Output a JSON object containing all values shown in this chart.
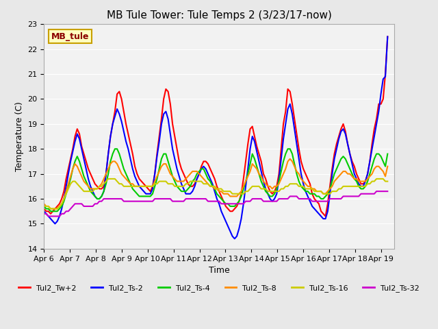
{
  "title": "MB Tule Tower: Tule Temps 2 (3/23/17-now)",
  "xlabel": "Time",
  "ylabel": "Temperature (C)",
  "ylim": [
    14.0,
    23.0
  ],
  "yticks": [
    14.0,
    15.0,
    16.0,
    17.0,
    18.0,
    19.0,
    20.0,
    21.0,
    22.0,
    23.0
  ],
  "xlim": [
    0,
    13.5
  ],
  "xtick_labels": [
    "Apr 6",
    "Apr 7",
    "Apr 8",
    "Apr 9",
    "Apr 10",
    "Apr 11",
    "Apr 12",
    "Apr 13",
    "Apr 14",
    "Apr 15",
    "Apr 16",
    "Apr 17",
    "Apr 18",
    "Apr 19"
  ],
  "xtick_positions": [
    0,
    1,
    2,
    3,
    4,
    5,
    6,
    7,
    8,
    9,
    10,
    11,
    12,
    13
  ],
  "annotation_text": "MB_tule",
  "annotation_color": "#8B0000",
  "annotation_bg": "#FFFFC0",
  "annotation_border": "#C8A000",
  "background_color": "#E8E8E8",
  "plot_bg": "#F2F2F2",
  "series": [
    {
      "name": "Tul2_Tw+2",
      "color": "#FF0000",
      "linewidth": 1.5,
      "y": [
        15.6,
        15.5,
        15.5,
        15.4,
        15.5,
        15.6,
        15.7,
        15.8,
        16.0,
        16.3,
        16.8,
        17.2,
        17.6,
        18.0,
        18.5,
        18.8,
        18.6,
        18.1,
        17.8,
        17.5,
        17.2,
        17.0,
        16.8,
        16.6,
        16.5,
        16.4,
        16.4,
        16.5,
        17.0,
        17.8,
        18.5,
        19.0,
        19.5,
        20.2,
        20.3,
        20.0,
        19.5,
        19.0,
        18.6,
        18.2,
        17.8,
        17.3,
        17.0,
        16.8,
        16.7,
        16.6,
        16.5,
        16.4,
        16.3,
        16.5,
        17.0,
        17.8,
        18.5,
        19.2,
        20.0,
        20.4,
        20.3,
        19.8,
        19.0,
        18.5,
        18.0,
        17.5,
        17.2,
        17.0,
        16.8,
        16.6,
        16.5,
        16.5,
        16.6,
        16.8,
        17.0,
        17.3,
        17.5,
        17.5,
        17.4,
        17.2,
        17.0,
        16.8,
        16.5,
        16.3,
        16.1,
        15.9,
        15.7,
        15.6,
        15.5,
        15.5,
        15.6,
        15.7,
        15.9,
        16.2,
        16.8,
        17.5,
        18.2,
        18.8,
        18.9,
        18.5,
        18.1,
        17.8,
        17.5,
        17.0,
        16.8,
        16.5,
        16.3,
        16.2,
        16.3,
        16.5,
        17.0,
        18.0,
        19.0,
        19.5,
        20.4,
        20.3,
        19.8,
        19.2,
        18.6,
        18.0,
        17.5,
        17.2,
        17.0,
        16.8,
        16.6,
        16.2,
        16.0,
        15.9,
        15.8,
        15.5,
        15.4,
        15.3,
        15.8,
        16.5,
        17.2,
        17.8,
        18.2,
        18.5,
        18.8,
        19.0,
        18.7,
        18.2,
        17.8,
        17.5,
        17.3,
        17.0,
        16.8,
        16.6,
        16.6,
        16.7,
        17.0,
        17.5,
        18.2,
        18.8,
        19.2,
        19.8,
        19.8,
        20.0,
        21.0,
        22.5
      ]
    },
    {
      "name": "Tul2_Ts-2",
      "color": "#0000FF",
      "linewidth": 1.5,
      "y": [
        15.5,
        15.4,
        15.3,
        15.2,
        15.1,
        15.0,
        15.1,
        15.3,
        15.6,
        16.0,
        16.5,
        17.0,
        17.5,
        17.9,
        18.3,
        18.6,
        18.4,
        18.0,
        17.6,
        17.2,
        16.8,
        16.5,
        16.3,
        16.1,
        16.0,
        16.0,
        16.1,
        16.3,
        17.0,
        17.8,
        18.5,
        19.0,
        19.3,
        19.6,
        19.4,
        19.1,
        18.7,
        18.3,
        18.0,
        17.6,
        17.2,
        16.9,
        16.7,
        16.5,
        16.4,
        16.3,
        16.2,
        16.2,
        16.2,
        16.4,
        17.0,
        17.7,
        18.3,
        19.0,
        19.4,
        19.5,
        19.2,
        18.6,
        18.0,
        17.6,
        17.2,
        16.9,
        16.6,
        16.4,
        16.2,
        16.2,
        16.2,
        16.3,
        16.5,
        16.8,
        17.0,
        17.2,
        17.3,
        17.2,
        17.0,
        16.8,
        16.6,
        16.3,
        16.0,
        15.8,
        15.5,
        15.3,
        15.1,
        14.9,
        14.7,
        14.5,
        14.4,
        14.5,
        14.8,
        15.2,
        15.8,
        16.5,
        17.2,
        18.0,
        18.5,
        18.3,
        17.9,
        17.5,
        17.1,
        16.7,
        16.4,
        16.2,
        16.0,
        15.9,
        16.0,
        16.2,
        16.8,
        17.6,
        18.4,
        19.0,
        19.6,
        19.8,
        19.4,
        18.8,
        18.2,
        17.6,
        17.0,
        16.6,
        16.3,
        16.1,
        15.9,
        15.7,
        15.6,
        15.5,
        15.4,
        15.3,
        15.2,
        15.2,
        15.5,
        16.2,
        17.0,
        17.6,
        18.0,
        18.4,
        18.7,
        18.8,
        18.6,
        18.2,
        17.8,
        17.4,
        17.0,
        16.8,
        16.6,
        16.5,
        16.5,
        16.7,
        17.0,
        17.5,
        18.0,
        18.5,
        19.0,
        19.5,
        20.2,
        20.8,
        20.9,
        22.5
      ]
    },
    {
      "name": "Tul2_Ts-4",
      "color": "#00CC00",
      "linewidth": 1.5,
      "y": [
        15.7,
        15.6,
        15.6,
        15.5,
        15.5,
        15.5,
        15.5,
        15.6,
        15.7,
        15.9,
        16.2,
        16.5,
        16.8,
        17.2,
        17.5,
        17.7,
        17.5,
        17.2,
        16.9,
        16.7,
        16.5,
        16.3,
        16.2,
        16.1,
        16.0,
        16.0,
        16.1,
        16.3,
        16.6,
        17.0,
        17.5,
        17.8,
        18.0,
        18.0,
        17.8,
        17.5,
        17.2,
        17.0,
        16.8,
        16.6,
        16.4,
        16.3,
        16.2,
        16.1,
        16.1,
        16.1,
        16.1,
        16.1,
        16.1,
        16.2,
        16.5,
        16.8,
        17.2,
        17.6,
        17.8,
        17.8,
        17.5,
        17.2,
        16.9,
        16.7,
        16.5,
        16.4,
        16.3,
        16.3,
        16.3,
        16.4,
        16.5,
        16.7,
        16.8,
        17.0,
        17.1,
        17.2,
        17.2,
        17.0,
        16.8,
        16.7,
        16.5,
        16.4,
        16.2,
        16.1,
        16.0,
        15.9,
        15.8,
        15.8,
        15.7,
        15.7,
        15.7,
        15.8,
        15.9,
        16.1,
        16.4,
        16.7,
        17.0,
        17.4,
        17.8,
        17.6,
        17.3,
        17.0,
        16.7,
        16.5,
        16.3,
        16.2,
        16.1,
        16.1,
        16.2,
        16.4,
        16.7,
        17.1,
        17.5,
        17.8,
        18.0,
        18.0,
        17.8,
        17.4,
        17.0,
        16.7,
        16.5,
        16.4,
        16.3,
        16.3,
        16.2,
        16.2,
        16.2,
        16.1,
        16.1,
        16.0,
        16.0,
        16.1,
        16.2,
        16.4,
        16.7,
        17.0,
        17.2,
        17.4,
        17.6,
        17.7,
        17.6,
        17.4,
        17.2,
        17.0,
        16.8,
        16.7,
        16.5,
        16.4,
        16.4,
        16.5,
        16.7,
        17.0,
        17.3,
        17.6,
        17.8,
        17.8,
        17.7,
        17.5,
        17.3,
        17.8
      ]
    },
    {
      "name": "Tul2_Ts-8",
      "color": "#FF8C00",
      "linewidth": 1.5,
      "y": [
        15.8,
        15.7,
        15.7,
        15.6,
        15.6,
        15.6,
        15.6,
        15.7,
        15.8,
        16.0,
        16.3,
        16.6,
        16.9,
        17.2,
        17.4,
        17.3,
        17.1,
        16.9,
        16.7,
        16.6,
        16.5,
        16.4,
        16.4,
        16.4,
        16.4,
        16.5,
        16.6,
        16.8,
        17.0,
        17.2,
        17.4,
        17.5,
        17.5,
        17.4,
        17.2,
        17.0,
        16.9,
        16.8,
        16.7,
        16.6,
        16.6,
        16.5,
        16.5,
        16.5,
        16.5,
        16.5,
        16.5,
        16.5,
        16.5,
        16.5,
        16.7,
        16.9,
        17.1,
        17.3,
        17.4,
        17.4,
        17.2,
        17.0,
        16.9,
        16.8,
        16.7,
        16.7,
        16.7,
        16.7,
        16.8,
        16.9,
        17.0,
        17.1,
        17.1,
        17.1,
        17.0,
        16.9,
        16.8,
        16.7,
        16.6,
        16.5,
        16.5,
        16.4,
        16.4,
        16.3,
        16.3,
        16.2,
        16.2,
        16.2,
        16.1,
        16.1,
        16.1,
        16.1,
        16.2,
        16.3,
        16.5,
        16.7,
        16.9,
        17.1,
        17.4,
        17.3,
        17.2,
        17.0,
        16.9,
        16.7,
        16.6,
        16.5,
        16.5,
        16.4,
        16.5,
        16.5,
        16.6,
        16.8,
        17.0,
        17.2,
        17.5,
        17.6,
        17.5,
        17.3,
        17.1,
        17.0,
        16.8,
        16.7,
        16.6,
        16.5,
        16.5,
        16.4,
        16.4,
        16.3,
        16.3,
        16.3,
        16.2,
        16.2,
        16.3,
        16.4,
        16.5,
        16.7,
        16.8,
        16.9,
        17.0,
        17.1,
        17.1,
        17.0,
        17.0,
        16.9,
        16.8,
        16.8,
        16.7,
        16.7,
        16.7,
        16.7,
        16.8,
        16.9,
        17.0,
        17.2,
        17.3,
        17.3,
        17.2,
        17.1,
        16.9,
        17.3
      ]
    },
    {
      "name": "Tul2_Ts-16",
      "color": "#CCCC00",
      "linewidth": 1.5,
      "y": [
        15.7,
        15.7,
        15.7,
        15.6,
        15.6,
        15.6,
        15.6,
        15.7,
        15.8,
        16.0,
        16.2,
        16.4,
        16.6,
        16.7,
        16.7,
        16.6,
        16.5,
        16.4,
        16.3,
        16.3,
        16.3,
        16.3,
        16.3,
        16.4,
        16.4,
        16.5,
        16.5,
        16.6,
        16.7,
        16.8,
        16.8,
        16.8,
        16.8,
        16.7,
        16.6,
        16.6,
        16.5,
        16.5,
        16.5,
        16.5,
        16.5,
        16.5,
        16.5,
        16.5,
        16.5,
        16.5,
        16.5,
        16.5,
        16.5,
        16.5,
        16.6,
        16.6,
        16.7,
        16.7,
        16.7,
        16.7,
        16.6,
        16.6,
        16.6,
        16.5,
        16.5,
        16.5,
        16.5,
        16.5,
        16.6,
        16.6,
        16.7,
        16.7,
        16.7,
        16.7,
        16.7,
        16.7,
        16.6,
        16.6,
        16.6,
        16.5,
        16.5,
        16.5,
        16.4,
        16.4,
        16.4,
        16.3,
        16.3,
        16.3,
        16.3,
        16.2,
        16.2,
        16.2,
        16.2,
        16.2,
        16.2,
        16.3,
        16.3,
        16.4,
        16.5,
        16.5,
        16.5,
        16.5,
        16.4,
        16.4,
        16.4,
        16.3,
        16.3,
        16.3,
        16.3,
        16.3,
        16.3,
        16.4,
        16.4,
        16.5,
        16.5,
        16.6,
        16.6,
        16.6,
        16.6,
        16.5,
        16.5,
        16.5,
        16.4,
        16.4,
        16.4,
        16.4,
        16.3,
        16.3,
        16.3,
        16.3,
        16.2,
        16.2,
        16.2,
        16.2,
        16.3,
        16.3,
        16.3,
        16.4,
        16.4,
        16.5,
        16.5,
        16.5,
        16.5,
        16.5,
        16.5,
        16.5,
        16.5,
        16.5,
        16.5,
        16.5,
        16.6,
        16.6,
        16.7,
        16.7,
        16.8,
        16.8,
        16.8,
        16.8,
        16.7,
        16.7
      ]
    },
    {
      "name": "Tul2_Ts-32",
      "color": "#CC00CC",
      "linewidth": 1.5,
      "y": [
        15.4,
        15.4,
        15.3,
        15.3,
        15.3,
        15.3,
        15.3,
        15.3,
        15.4,
        15.4,
        15.5,
        15.5,
        15.6,
        15.7,
        15.8,
        15.8,
        15.8,
        15.8,
        15.7,
        15.7,
        15.7,
        15.7,
        15.7,
        15.8,
        15.8,
        15.9,
        15.9,
        16.0,
        16.0,
        16.0,
        16.0,
        16.0,
        16.0,
        16.0,
        16.0,
        16.0,
        15.9,
        15.9,
        15.9,
        15.9,
        15.9,
        15.9,
        15.9,
        15.9,
        15.9,
        15.9,
        15.9,
        15.9,
        15.9,
        15.9,
        16.0,
        16.0,
        16.0,
        16.0,
        16.0,
        16.0,
        16.0,
        16.0,
        15.9,
        15.9,
        15.9,
        15.9,
        15.9,
        15.9,
        16.0,
        16.0,
        16.0,
        16.0,
        16.0,
        16.0,
        16.0,
        16.0,
        16.0,
        16.0,
        15.9,
        15.9,
        15.9,
        15.9,
        15.9,
        15.9,
        15.8,
        15.8,
        15.8,
        15.8,
        15.8,
        15.8,
        15.8,
        15.8,
        15.8,
        15.8,
        15.8,
        15.9,
        15.9,
        15.9,
        16.0,
        16.0,
        16.0,
        16.0,
        16.0,
        15.9,
        15.9,
        15.9,
        15.9,
        15.9,
        15.9,
        15.9,
        16.0,
        16.0,
        16.0,
        16.0,
        16.0,
        16.1,
        16.1,
        16.1,
        16.1,
        16.0,
        16.0,
        16.0,
        16.0,
        16.0,
        16.0,
        15.9,
        15.9,
        15.9,
        15.9,
        15.9,
        15.9,
        15.9,
        15.9,
        16.0,
        16.0,
        16.0,
        16.0,
        16.0,
        16.0,
        16.1,
        16.1,
        16.1,
        16.1,
        16.1,
        16.1,
        16.1,
        16.1,
        16.2,
        16.2,
        16.2,
        16.2,
        16.2,
        16.2,
        16.2,
        16.3,
        16.3,
        16.3,
        16.3,
        16.3,
        16.3
      ]
    }
  ]
}
